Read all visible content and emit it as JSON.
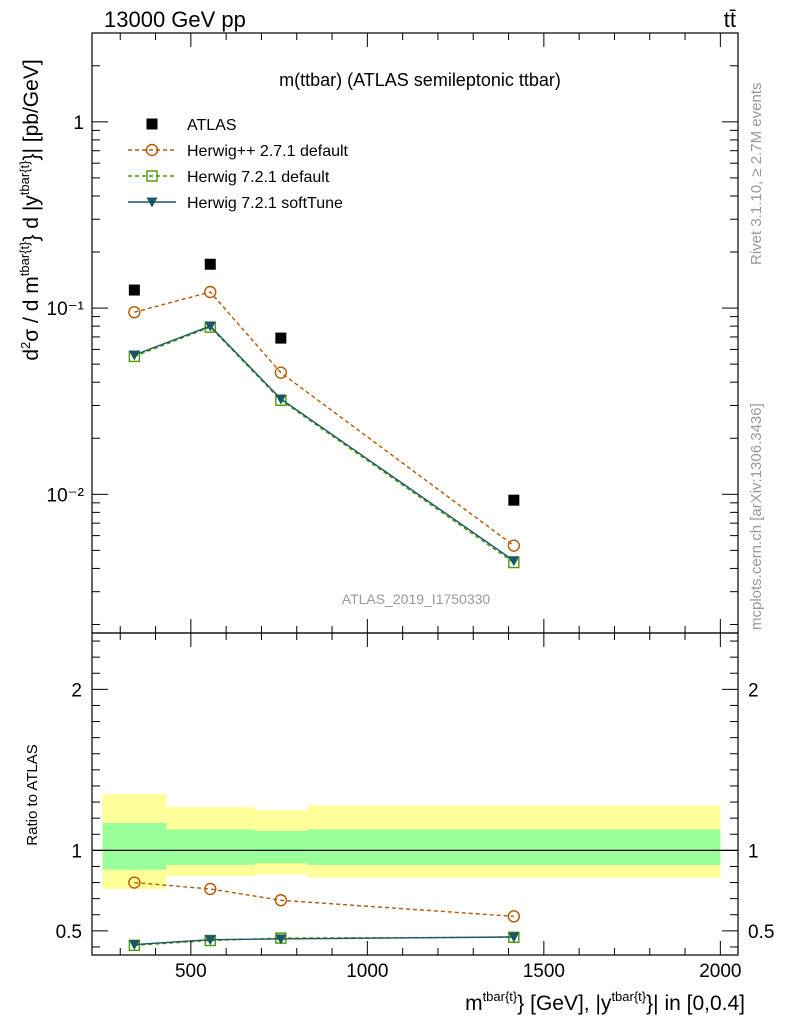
{
  "header": {
    "left": "13000 GeV pp",
    "right": "tt̄"
  },
  "side_labels": {
    "rivet": "Rivet 3.1.10, ≥ 2.7M events",
    "mcplots": "mcplots.cern.ch [arXiv:1306.3436]"
  },
  "analysis_id": "ATLAS_2019_I1750330",
  "colors": {
    "atlas": "#000000",
    "herwigpp": "#b35900",
    "herwig721": "#4c9900",
    "softtune": "#1a5766",
    "band_inner": "#99ff99",
    "band_outer": "#ffff99"
  },
  "chart_data": [
    {
      "type": "scatter",
      "title": "m(ttbar) (ATLAS semileptonic ttbar)",
      "ylabel": "d²σ / d m^{tbar{t}} d |y^{tbar{t}}| [pb/GeV]",
      "yscale": "log",
      "ylim": [
        0.0018,
        3.0
      ],
      "xlim": [
        220,
        2050
      ],
      "yticks": [
        {
          "value": 1,
          "label": "1"
        },
        {
          "value": 0.1,
          "label": "10⁻¹"
        },
        {
          "value": 0.01,
          "label": "10⁻²"
        }
      ],
      "legend_position": "top-left",
      "series": [
        {
          "name": "ATLAS",
          "key": "atlas",
          "style": "square",
          "x": [
            340,
            555,
            755,
            1415
          ],
          "y": [
            0.125,
            0.172,
            0.069,
            0.0093
          ]
        },
        {
          "name": "Herwig++ 2.7.1 default",
          "key": "herwigpp",
          "style": "circle-dashed",
          "x": [
            340,
            555,
            755,
            1415
          ],
          "y": [
            0.095,
            0.122,
            0.045,
            0.0053
          ]
        },
        {
          "name": "Herwig 7.2.1 default",
          "key": "herwig721",
          "style": "square-open-dashed",
          "x": [
            340,
            555,
            755,
            1415
          ],
          "y": [
            0.055,
            0.079,
            0.032,
            0.0043
          ]
        },
        {
          "name": "Herwig 7.2.1 softTune",
          "key": "softtune",
          "style": "triangle-solid",
          "x": [
            340,
            555,
            755,
            1415
          ],
          "y": [
            0.056,
            0.08,
            0.0325,
            0.0044
          ]
        }
      ]
    },
    {
      "type": "line",
      "ylabel": "Ratio to ATLAS",
      "xlabel": "m^{tbar{t}} [GeV], |y^{tbar{t}}| in [0,0.4]",
      "xlim": [
        220,
        2050
      ],
      "ylim": [
        0.35,
        2.35
      ],
      "xticks": [
        500,
        1000,
        1500,
        2000
      ],
      "yticks": [
        {
          "value": 0.5,
          "label": "0.5"
        },
        {
          "value": 1,
          "label": "1"
        },
        {
          "value": 2,
          "label": "2"
        }
      ],
      "bands": [
        {
          "x0": 250,
          "x1": 430,
          "inner": [
            0.88,
            1.17
          ],
          "outer": [
            0.76,
            1.35
          ]
        },
        {
          "x0": 430,
          "x1": 680,
          "inner": [
            0.91,
            1.13
          ],
          "outer": [
            0.84,
            1.27
          ]
        },
        {
          "x0": 680,
          "x1": 830,
          "inner": [
            0.92,
            1.12
          ],
          "outer": [
            0.85,
            1.25
          ]
        },
        {
          "x0": 830,
          "x1": 2000,
          "inner": [
            0.91,
            1.13
          ],
          "outer": [
            0.83,
            1.28
          ]
        }
      ],
      "series": [
        {
          "name": "Herwig++ 2.7.1 default",
          "key": "herwigpp",
          "style": "circle-dashed",
          "x": [
            340,
            555,
            755,
            1415
          ],
          "y": [
            0.8,
            0.76,
            0.69,
            0.59
          ]
        },
        {
          "name": "Herwig 7.2.1 default",
          "key": "herwig721",
          "style": "square-open-dashed",
          "x": [
            340,
            555,
            755,
            1415
          ],
          "y": [
            0.41,
            0.44,
            0.455,
            0.46
          ]
        },
        {
          "name": "Herwig 7.2.1 softTune",
          "key": "softtune",
          "style": "triangle-solid",
          "x": [
            340,
            555,
            755,
            1415
          ],
          "y": [
            0.415,
            0.445,
            0.45,
            0.462
          ]
        }
      ]
    }
  ]
}
